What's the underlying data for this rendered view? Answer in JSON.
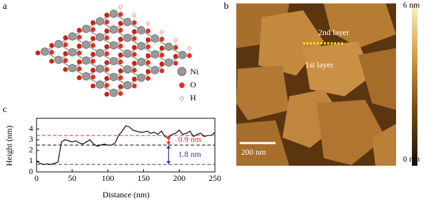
{
  "panels": {
    "a": {
      "letter": "a",
      "legend": [
        "Ni",
        "O",
        "H"
      ]
    },
    "b": {
      "letter": "b",
      "layer2": "2nd layer",
      "layer1": "1st layer",
      "scale_bar": "200 nm",
      "colorbar_top": "6 nm",
      "colorbar_bottom": "0 nm"
    }
  },
  "chart_data": {
    "type": "line",
    "letter": "c",
    "x_label": "Distance (nm)",
    "y_label": "Height (nm)",
    "xlim": [
      0,
      250
    ],
    "xticks": [
      0,
      50,
      100,
      150,
      200,
      250
    ],
    "ylim": [
      0,
      5
    ],
    "yticks": [
      0,
      1,
      2,
      3,
      4
    ],
    "x": [
      0,
      5,
      10,
      15,
      20,
      25,
      30,
      35,
      40,
      45,
      50,
      55,
      60,
      65,
      70,
      75,
      80,
      85,
      90,
      95,
      100,
      105,
      110,
      115,
      120,
      125,
      130,
      135,
      140,
      145,
      150,
      155,
      160,
      165,
      170,
      175,
      180,
      185,
      190,
      195,
      200,
      205,
      210,
      215,
      220,
      225,
      230,
      235,
      240,
      245,
      250
    ],
    "series": [
      {
        "color": "#000000",
        "values": [
          1.0,
          0.8,
          0.7,
          0.75,
          0.7,
          0.8,
          0.9,
          2.8,
          3.0,
          2.9,
          2.8,
          2.9,
          2.7,
          2.6,
          2.8,
          3.0,
          2.6,
          2.4,
          2.5,
          2.6,
          2.5,
          2.5,
          2.7,
          3.4,
          3.8,
          4.3,
          4.2,
          3.9,
          3.8,
          3.7,
          3.7,
          3.8,
          3.6,
          3.7,
          3.5,
          3.8,
          3.3,
          3.2,
          3.5,
          3.6,
          3.9,
          3.5,
          3.6,
          3.8,
          3.3,
          3.5,
          3.6,
          3.3,
          3.4,
          3.4,
          3.7
        ]
      }
    ],
    "reference_lines": [
      {
        "value": 3.4,
        "color": "#e8262a"
      },
      {
        "value": 2.5,
        "color": "#000000"
      },
      {
        "value": 0.7,
        "color": "#2b3a9e"
      }
    ],
    "annotations": [
      {
        "text": "0.9 nm",
        "color": "#e8262a"
      },
      {
        "text": "1.8 nm",
        "color": "#2b3a9e"
      }
    ]
  }
}
